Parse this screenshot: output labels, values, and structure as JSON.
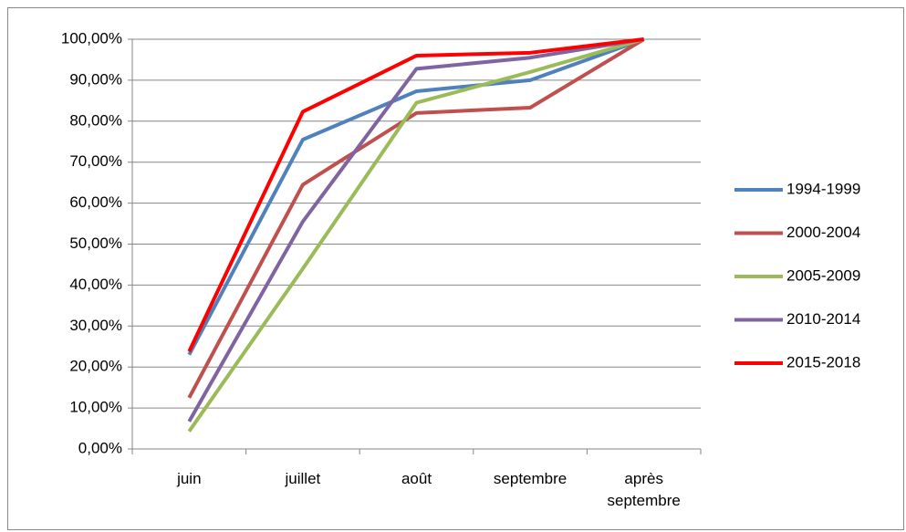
{
  "chart_data": {
    "type": "line",
    "categories": [
      "juin",
      "juillet",
      "août",
      "septembre",
      "après septembre"
    ],
    "series": [
      {
        "name": "1994-1999",
        "color": "#4f81bd",
        "values": [
          23,
          75.5,
          87.3,
          90,
          100
        ]
      },
      {
        "name": "2000-2004",
        "color": "#c0504d",
        "values": [
          12.5,
          64.5,
          82,
          83.3,
          100
        ]
      },
      {
        "name": "2005-2009",
        "color": "#9bbb59",
        "values": [
          4.3,
          44,
          84.5,
          92,
          100
        ]
      },
      {
        "name": "2010-2014",
        "color": "#8064a2",
        "values": [
          6.7,
          55.5,
          92.8,
          95.5,
          100
        ]
      },
      {
        "name": "2015-2018",
        "color": "#ff0000",
        "values": [
          23.8,
          82.3,
          96,
          96.7,
          100
        ]
      }
    ],
    "ylim": [
      0,
      100
    ],
    "yticks": [
      {
        "value": 0,
        "label": "0,00%"
      },
      {
        "value": 10,
        "label": "10,00%"
      },
      {
        "value": 20,
        "label": "20,00%"
      },
      {
        "value": 30,
        "label": "30,00%"
      },
      {
        "value": 40,
        "label": "40,00%"
      },
      {
        "value": 50,
        "label": "50,00%"
      },
      {
        "value": 60,
        "label": "60,00%"
      },
      {
        "value": 70,
        "label": "70,00%"
      },
      {
        "value": 80,
        "label": "80,00%"
      },
      {
        "value": 90,
        "label": "90,00%"
      },
      {
        "value": 100,
        "label": "100,00%"
      }
    ],
    "grid": true,
    "legend": "right"
  }
}
